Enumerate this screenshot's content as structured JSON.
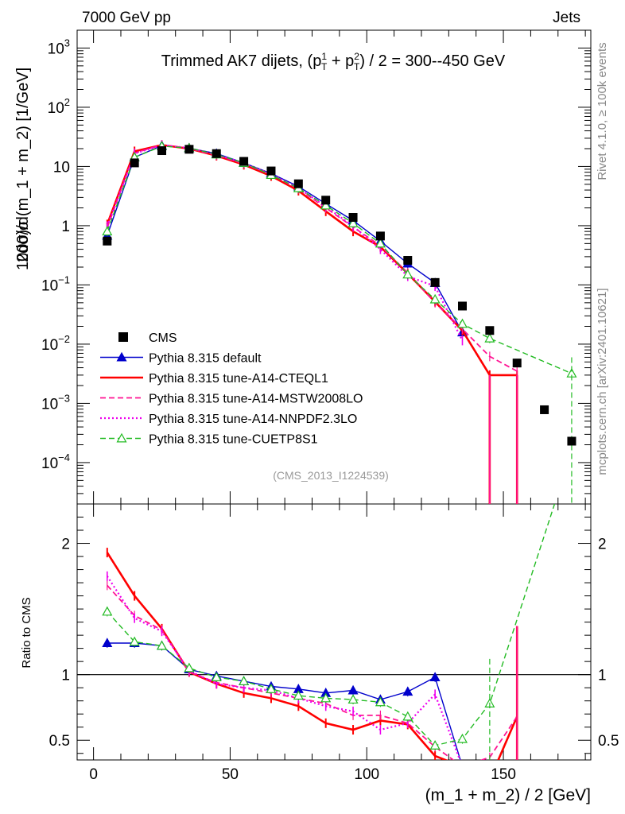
{
  "header": {
    "left": "7000 GeV pp",
    "right": "Jets"
  },
  "side_texts": {
    "rivet": "Rivet 4.1.0, ≥ 100k events",
    "mcplots": "mcplots.cern.ch [arXiv:2401.10621]"
  },
  "chart_data": {
    "type": "line",
    "title_parts": [
      "Trimmed AK7 dijets, (p",
      "1",
      "T",
      " + p",
      "2",
      "T",
      ") / 2 = 300--450 GeV"
    ],
    "analysis_id": "(CMS_2013_I1224539)",
    "xlabel": "(m_1 + m_2) / 2 [GeV]",
    "ylabel_main_parts": [
      "1000/σ",
      "2dσ)/d(m_1 + m_2) [1/GeV]"
    ],
    "ylabel_ratio": "Ratio to CMS",
    "x_ticks": [
      0,
      50,
      100,
      150
    ],
    "x_range": [
      -6,
      182
    ],
    "main_y_range": [
      2e-05,
      2000
    ],
    "main_y_ticks": [
      {
        "value": 1000,
        "base": "10",
        "exp": "3"
      },
      {
        "value": 100,
        "base": "10",
        "exp": "2"
      },
      {
        "value": 10,
        "base": "10",
        "exp": ""
      },
      {
        "value": 1,
        "base": "1",
        "exp": ""
      },
      {
        "value": 0.1,
        "base": "10",
        "exp": "−1"
      },
      {
        "value": 0.01,
        "base": "10",
        "exp": "−2"
      },
      {
        "value": 0.001,
        "base": "10",
        "exp": "−3"
      },
      {
        "value": 0.0001,
        "base": "10",
        "exp": "−4"
      }
    ],
    "ratio_y_range": [
      0.35,
      2.3
    ],
    "ratio_y_ticks": [
      {
        "value": 0.5,
        "label": "0.5"
      },
      {
        "value": 1,
        "label": "1"
      },
      {
        "value": 2,
        "label": "2"
      }
    ],
    "bin_width": 10,
    "x": [
      5,
      15,
      25,
      35,
      45,
      55,
      65,
      75,
      85,
      95,
      105,
      115,
      125,
      135,
      145,
      155,
      165,
      175
    ],
    "data": {
      "name": "CMS",
      "color": "#000000",
      "values": [
        0.55,
        11.5,
        18.5,
        19.5,
        16.5,
        12.2,
        8.4,
        5.1,
        2.7,
        1.38,
        0.67,
        0.26,
        0.11,
        0.044,
        0.017,
        0.0048,
        0.00078,
        0.00023
      ]
    },
    "series": [
      {
        "name": "Pythia 8.315 default",
        "color": "#0000cc",
        "style": "solid",
        "width": 1.4,
        "marker": "triangle-filled",
        "values": [
          0.68,
          14.3,
          22.5,
          20.3,
          16.5,
          11.5,
          7.6,
          4.6,
          2.35,
          1.22,
          0.55,
          0.23,
          0.108,
          0.0158,
          null,
          null,
          null,
          null
        ],
        "ratio": [
          1.24,
          1.24,
          1.22,
          1.04,
          0.99,
          0.95,
          0.91,
          0.89,
          0.86,
          0.88,
          0.81,
          0.87,
          0.98,
          0.3,
          null,
          null,
          null,
          null
        ]
      },
      {
        "name": "Pythia 8.315 tune-A14-CTEQL1",
        "color": "#ff0000",
        "style": "solid",
        "width": 2.6,
        "marker": "none",
        "values": [
          1.05,
          18.0,
          23.0,
          20.0,
          15.2,
          10.7,
          6.9,
          3.9,
          1.75,
          0.8,
          0.44,
          0.155,
          0.052,
          0.017,
          0.003,
          0.003,
          null,
          null
        ],
        "ratio": [
          1.93,
          1.6,
          1.35,
          1.02,
          0.93,
          0.86,
          0.82,
          0.76,
          0.63,
          0.58,
          0.65,
          0.62,
          0.38,
          0.3,
          0.2,
          0.68,
          null,
          null
        ]
      },
      {
        "name": "Pythia 8.315 tune-A14-MSTW2008LO",
        "color": "#ff1493",
        "style": "dashed",
        "width": 1.8,
        "marker": "none",
        "values": [
          0.92,
          16.8,
          23.2,
          20.2,
          15.5,
          11.2,
          7.3,
          4.2,
          2.0,
          0.95,
          0.46,
          0.16,
          0.05,
          0.018,
          0.0062,
          0.0035,
          null,
          null
        ],
        "ratio": [
          1.68,
          1.45,
          1.34,
          1.02,
          0.94,
          0.9,
          0.86,
          0.82,
          0.78,
          0.69,
          0.69,
          0.63,
          0.45,
          0.3,
          0.37,
          0.68,
          null,
          null
        ]
      },
      {
        "name": "Pythia 8.315 tune-A14-NNPDF2.3LO",
        "color": "#ee00ee",
        "style": "dotted",
        "width": 2.2,
        "marker": "none",
        "values": [
          0.98,
          16.5,
          23.0,
          20.5,
          15.8,
          11.4,
          7.4,
          4.3,
          2.1,
          0.98,
          0.4,
          0.14,
          0.095,
          0.0115,
          null,
          null,
          null,
          null
        ],
        "ratio": [
          1.75,
          1.43,
          1.33,
          1.03,
          0.93,
          0.9,
          0.88,
          0.82,
          0.76,
          0.72,
          0.58,
          0.63,
          0.85,
          0.3,
          null,
          null,
          null,
          null
        ]
      },
      {
        "name": "Pythia 8.315 tune-CUETP8S1",
        "color": "#22bb22",
        "style": "dashed",
        "width": 1.4,
        "marker": "triangle-open",
        "values": [
          0.8,
          14.3,
          22.0,
          20.5,
          16.0,
          11.5,
          7.2,
          4.3,
          2.2,
          1.1,
          0.5,
          0.15,
          0.057,
          0.022,
          0.0125,
          null,
          null,
          0.0032
        ],
        "ratio": [
          1.48,
          1.25,
          1.22,
          1.05,
          0.98,
          0.95,
          0.89,
          0.84,
          0.82,
          0.81,
          0.79,
          0.68,
          0.46,
          0.51,
          0.78,
          null,
          null,
          2.7
        ]
      }
    ]
  }
}
